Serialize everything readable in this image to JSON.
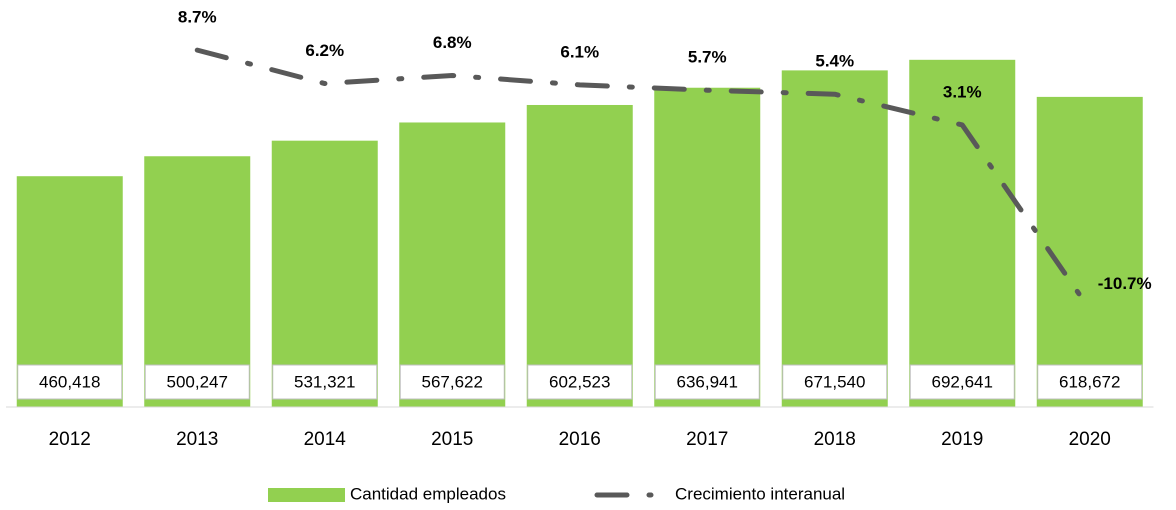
{
  "chart_data": {
    "type": "bar_line",
    "categories": [
      "2012",
      "2013",
      "2014",
      "2015",
      "2016",
      "2017",
      "2018",
      "2019",
      "2020"
    ],
    "series": [
      {
        "name": "Cantidad empleados",
        "type": "bar",
        "color": "#92d050",
        "values": [
          460418,
          500247,
          531321,
          567622,
          602523,
          636941,
          671540,
          692641,
          618672
        ],
        "value_labels": [
          "460,418",
          "500,247",
          "531,321",
          "567,622",
          "602,523",
          "636,941",
          "671,540",
          "692,641",
          "618,672"
        ]
      },
      {
        "name": "Crecimiento interanual",
        "type": "line",
        "axis": "y2",
        "color": "#595959",
        "values": [
          null,
          8.7,
          6.2,
          6.8,
          6.1,
          5.7,
          5.4,
          3.1,
          -10.7
        ],
        "value_labels": [
          null,
          "8.7%",
          "6.2%",
          "6.8%",
          "6.1%",
          "5.7%",
          "5.4%",
          "3.1%",
          "-10.7%"
        ]
      }
    ],
    "ylim": [
      0,
      800000
    ],
    "y2lim": [
      -18,
      12
    ],
    "legend": "bottom"
  }
}
